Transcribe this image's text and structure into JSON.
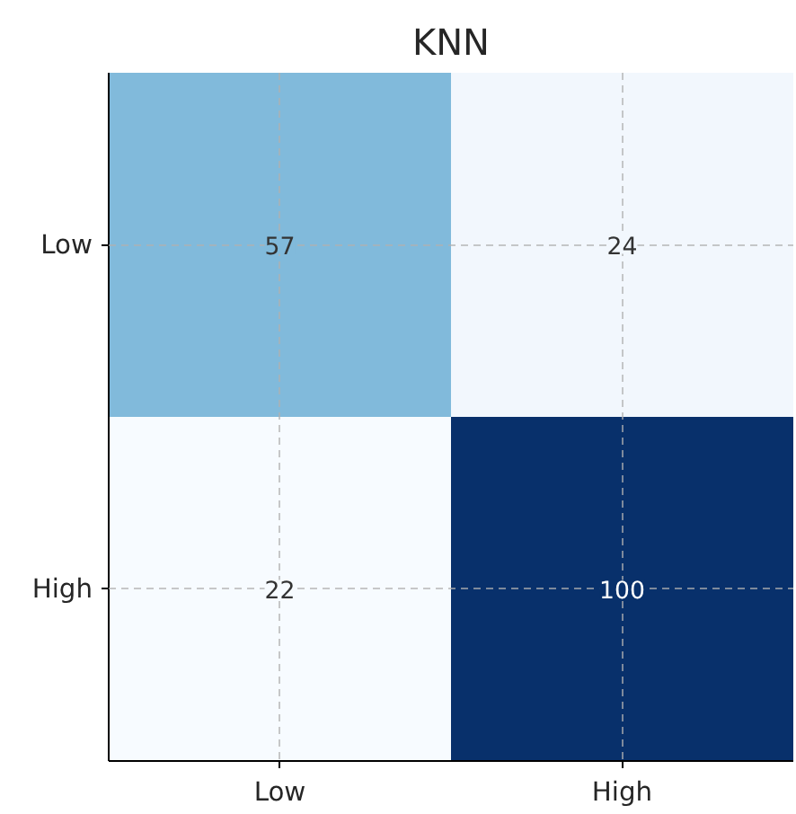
{
  "chart_data": {
    "type": "heatmap",
    "title": "KNN",
    "categories": [
      "Low",
      "High"
    ],
    "y_categories": [
      "Low",
      "High"
    ],
    "cells": [
      [
        57,
        24
      ],
      [
        22,
        100
      ]
    ],
    "data_labels": true,
    "grid": true
  }
}
